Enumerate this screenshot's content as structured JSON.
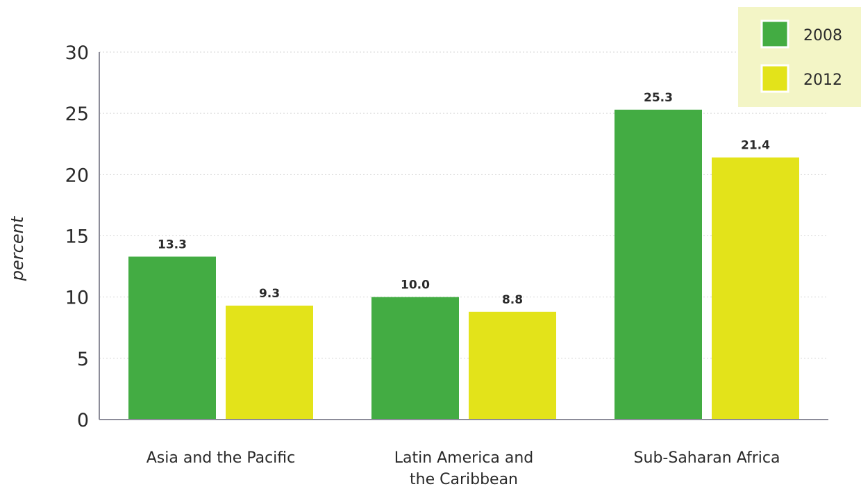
{
  "chart_data": {
    "type": "bar",
    "ylabel": "percent",
    "xlabel": "",
    "ylim": [
      0,
      30
    ],
    "yticks": [
      0,
      5,
      10,
      15,
      20,
      25,
      30
    ],
    "grid": true,
    "legend_position": "top-right",
    "categories": [
      [
        "Asia and the Pacific"
      ],
      [
        "Latin America and",
        "the Caribbean"
      ],
      [
        "Sub-Saharan Africa"
      ]
    ],
    "series": [
      {
        "name": "2008",
        "color": "#43ac43",
        "values": [
          13.3,
          10.0,
          25.3
        ],
        "labels": [
          "13.3",
          "10.0",
          "25.3"
        ]
      },
      {
        "name": "2012",
        "color": "#e3e31a",
        "values": [
          9.3,
          8.8,
          21.4
        ],
        "labels": [
          "9.3",
          "8.8",
          "21.4"
        ]
      }
    ],
    "colors": {
      "legend_background": "#f3f5c6",
      "axis": "#8c8c99",
      "grid": "#d6d6d6"
    }
  }
}
